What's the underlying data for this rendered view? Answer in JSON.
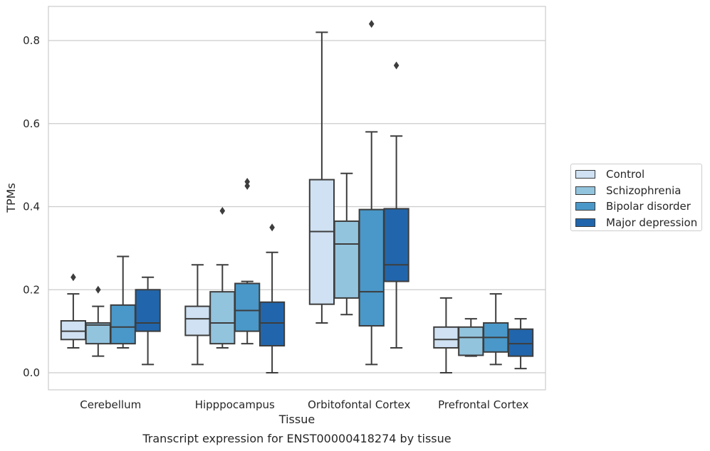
{
  "chart_data": {
    "type": "box",
    "title": "Transcript expression for ENST00000418274 by tissue",
    "xlabel": "Tissue",
    "ylabel": "TPMs",
    "ylim": [
      -0.04,
      0.885
    ],
    "yticks": [
      0.0,
      0.2,
      0.4,
      0.6,
      0.8
    ],
    "ytick_labels": [
      "0.0",
      "0.2",
      "0.4",
      "0.6",
      "0.8"
    ],
    "grid": "horizontal",
    "legend_position": "right",
    "categories": [
      "Cerebellum",
      "Hipppocampus",
      "Orbitofontal Cortex",
      "Prefrontal Cortex"
    ],
    "series": [
      {
        "name": "Control",
        "color": "#cfe1f2",
        "boxes": [
          {
            "whislo": 0.06,
            "q1": 0.08,
            "med": 0.1,
            "q3": 0.125,
            "whishi": 0.19,
            "fliers": [
              0.23
            ]
          },
          {
            "whislo": 0.02,
            "q1": 0.09,
            "med": 0.13,
            "q3": 0.16,
            "whishi": 0.26,
            "fliers": []
          },
          {
            "whislo": 0.12,
            "q1": 0.165,
            "med": 0.34,
            "q3": 0.465,
            "whishi": 0.82,
            "fliers": []
          },
          {
            "whislo": 0.0,
            "q1": 0.06,
            "med": 0.08,
            "q3": 0.11,
            "whishi": 0.18,
            "fliers": []
          }
        ]
      },
      {
        "name": "Schizophrenia",
        "color": "#93c4de",
        "boxes": [
          {
            "whislo": 0.04,
            "q1": 0.07,
            "med": 0.115,
            "q3": 0.12,
            "whishi": 0.16,
            "fliers": [
              0.2
            ]
          },
          {
            "whislo": 0.06,
            "q1": 0.07,
            "med": 0.12,
            "q3": 0.195,
            "whishi": 0.26,
            "fliers": [
              0.39
            ]
          },
          {
            "whislo": 0.14,
            "q1": 0.18,
            "med": 0.31,
            "q3": 0.365,
            "whishi": 0.48,
            "fliers": []
          },
          {
            "whislo": 0.04,
            "q1": 0.042,
            "med": 0.085,
            "q3": 0.11,
            "whishi": 0.13,
            "fliers": []
          }
        ]
      },
      {
        "name": "Bipolar disorder",
        "color": "#4a98c9",
        "boxes": [
          {
            "whislo": 0.06,
            "q1": 0.07,
            "med": 0.11,
            "q3": 0.163,
            "whishi": 0.28,
            "fliers": []
          },
          {
            "whislo": 0.07,
            "q1": 0.1,
            "med": 0.15,
            "q3": 0.215,
            "whishi": 0.22,
            "fliers": [
              0.45,
              0.46
            ]
          },
          {
            "whislo": 0.02,
            "q1": 0.113,
            "med": 0.195,
            "q3": 0.393,
            "whishi": 0.58,
            "fliers": [
              0.84
            ]
          },
          {
            "whislo": 0.02,
            "q1": 0.05,
            "med": 0.085,
            "q3": 0.12,
            "whishi": 0.19,
            "fliers": []
          }
        ]
      },
      {
        "name": "Major depression",
        "color": "#2166ac",
        "boxes": [
          {
            "whislo": 0.02,
            "q1": 0.1,
            "med": 0.12,
            "q3": 0.2,
            "whishi": 0.23,
            "fliers": []
          },
          {
            "whislo": 0.0,
            "q1": 0.065,
            "med": 0.12,
            "q3": 0.17,
            "whishi": 0.29,
            "fliers": [
              0.35
            ]
          },
          {
            "whislo": 0.06,
            "q1": 0.22,
            "med": 0.26,
            "q3": 0.395,
            "whishi": 0.57,
            "fliers": [
              0.74
            ]
          },
          {
            "whislo": 0.01,
            "q1": 0.04,
            "med": 0.07,
            "q3": 0.105,
            "whishi": 0.13,
            "fliers": []
          }
        ]
      }
    ]
  }
}
